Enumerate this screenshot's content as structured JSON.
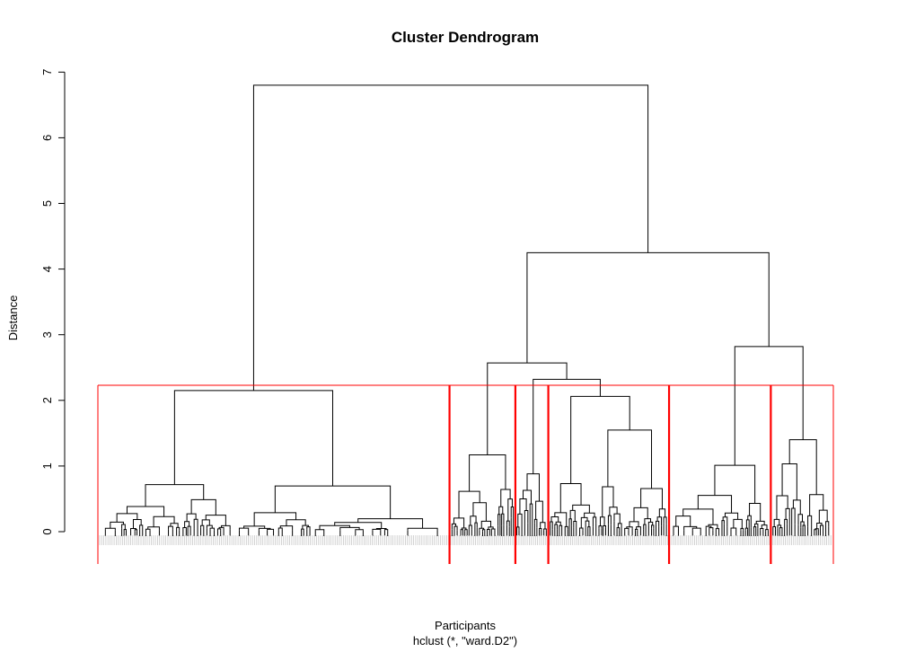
{
  "chart_data": {
    "type": "dendrogram",
    "title": "Cluster Dendrogram",
    "xlabel": "Participants",
    "sublabel": "hclust (*, \"ward.D2\")",
    "ylabel": "Distance",
    "ylim": [
      0,
      7
    ],
    "yticks": [
      "0",
      "1",
      "2",
      "3",
      "4",
      "5",
      "6",
      "7"
    ],
    "cut_height": 2.23,
    "cluster_count": 6,
    "top_merges": [
      {
        "name": "root",
        "height": 6.8
      },
      {
        "name": "right-branch",
        "height": 4.25
      },
      {
        "name": "right-right-branch",
        "height": 2.82
      },
      {
        "name": "right-left-branch",
        "height": 2.57
      },
      {
        "name": "clusters-3-4-merge",
        "height": 2.32
      },
      {
        "name": "left-branch",
        "height": 2.15
      }
    ],
    "clusters": [
      {
        "name": "cluster-1",
        "height": 2.15,
        "leaf_fraction": 0.478
      },
      {
        "name": "cluster-2",
        "height": 1.17,
        "leaf_fraction": 0.09
      },
      {
        "name": "cluster-3",
        "height": 0.88,
        "leaf_fraction": 0.045
      },
      {
        "name": "cluster-4",
        "height": 2.06,
        "leaf_fraction": 0.165
      },
      {
        "name": "cluster-5",
        "height": 1.01,
        "leaf_fraction": 0.139
      },
      {
        "name": "cluster-6",
        "height": 1.4,
        "leaf_fraction": 0.083
      }
    ],
    "colors": {
      "tree": "#000000",
      "cut_boxes": "#ff0000",
      "leaf_labels": "#c8c8c8"
    }
  }
}
